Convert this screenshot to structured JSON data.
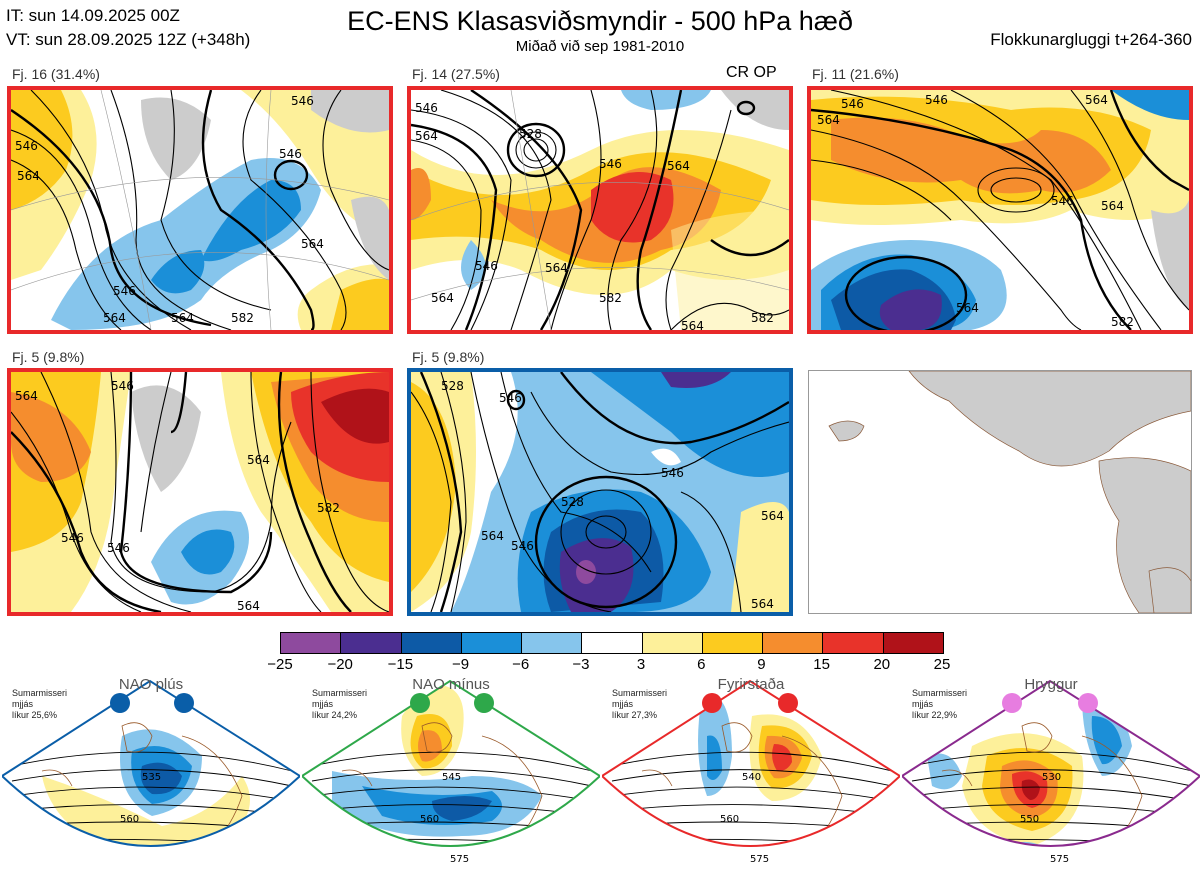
{
  "header": {
    "it_line": "IT: sun 14.09.2025 00Z",
    "vt_line": "VT: sun 28.09.2025 12Z  (+348h)",
    "title": "EC-ENS Klasasviðsmyndir - 500 hPa hæð",
    "subtitle": "Miðað við sep 1981-2010",
    "window": "Flokkunargluggi t+264-360"
  },
  "panels": [
    {
      "label": "Fj. 16 (31.4%)",
      "border": "#e8292a"
    },
    {
      "label": "Fj. 14 (27.5%)",
      "border": "#e8292a",
      "extra": "CR OP"
    },
    {
      "label": "Fj. 11 (21.6%)",
      "border": "#e8292a"
    },
    {
      "label": "Fj. 5 (9.8%)",
      "border": "#e8292a"
    },
    {
      "label": "Fj. 5 (9.8%)",
      "border": "#0a5ea8"
    }
  ],
  "contour_labels": {
    "p1": [
      "546",
      "546",
      "546",
      "564",
      "564",
      "546",
      "564",
      "564",
      "582"
    ],
    "p2": [
      "546",
      "564",
      "528",
      "546",
      "564",
      "546",
      "564",
      "564",
      "582",
      "582",
      "564"
    ],
    "p3": [
      "546",
      "546",
      "564",
      "546",
      "564",
      "564",
      "564",
      "582"
    ],
    "p4": [
      "564",
      "546",
      "546",
      "546",
      "564",
      "582",
      "564"
    ],
    "p5": [
      "546",
      "528",
      "546",
      "546",
      "528",
      "564",
      "564",
      "564"
    ]
  },
  "colorbar": {
    "ticks": [
      "−25",
      "−20",
      "−15",
      "−9",
      "−6",
      "−3",
      "3",
      "6",
      "9",
      "15",
      "20",
      "25"
    ],
    "colors": [
      "#8e4a9e",
      "#4b2e90",
      "#0d5aa6",
      "#1b8fd8",
      "#86c5ec",
      "#ffffff",
      "#fdf09a",
      "#fccb1f",
      "#f58d2e",
      "#e8332a",
      "#b01219"
    ]
  },
  "regimes": [
    {
      "name": "NAO plús",
      "season": "Sumarmisseri",
      "source": "mjjás",
      "prob": "líkur 25,6%",
      "color": "#0a5ea8",
      "dot": "#0a5ea8",
      "contours": [
        "535",
        "560"
      ]
    },
    {
      "name": "NAO mínus",
      "season": "Sumarmisseri",
      "source": "mjjás",
      "prob": "líkur 24,2%",
      "color": "#2ea84a",
      "dot": "#2ea84a",
      "contours": [
        "545",
        "560",
        "575"
      ]
    },
    {
      "name": "Fyrirstaða",
      "season": "Sumarmisseri",
      "source": "mjjás",
      "prob": "líkur 27,3%",
      "color": "#e8292a",
      "dot": "#e8292a",
      "contours": [
        "540",
        "560",
        "575"
      ]
    },
    {
      "name": "Hryggur",
      "season": "Sumarmisseri",
      "source": "mjjás",
      "prob": "líkur 22,9%",
      "color": "#8a2a8e",
      "dot": "#e77de0",
      "contours": [
        "530",
        "550",
        "575"
      ]
    }
  ]
}
